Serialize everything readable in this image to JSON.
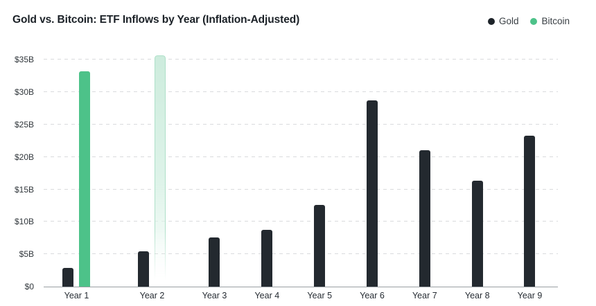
{
  "header": {
    "title": "Gold vs. Bitcoin: ETF Inflows by Year (Inflation-Adjusted)"
  },
  "legend": {
    "items": [
      {
        "label": "Gold",
        "color": "#1d2329"
      },
      {
        "label": "Bitcoin",
        "color": "#4dc289"
      }
    ]
  },
  "chart_data": {
    "type": "bar",
    "title": "Gold vs. Bitcoin: ETF Inflows by Year (Inflation-Adjusted)",
    "categories": [
      "Year 1",
      "Year 2",
      "Year 3",
      "Year 4",
      "Year 5",
      "Year 6",
      "Year 7",
      "Year 8",
      "Year 9"
    ],
    "series": [
      {
        "name": "Gold",
        "color": "#23292f",
        "values": [
          2.9,
          5.4,
          7.6,
          8.8,
          12.6,
          28.7,
          21.0,
          16.3,
          23.3
        ]
      },
      {
        "name": "Bitcoin",
        "color": "#4dc289",
        "values": [
          33.2,
          35.7,
          null,
          null,
          null,
          null,
          null,
          null,
          null
        ],
        "faded": [
          false,
          true,
          false,
          false,
          false,
          false,
          false,
          false,
          false
        ]
      }
    ],
    "y_ticks": [
      {
        "label": "$35B",
        "value": 35
      },
      {
        "label": "$30B",
        "value": 30
      },
      {
        "label": "$25B",
        "value": 25
      },
      {
        "label": "$20B",
        "value": 20
      },
      {
        "label": "$15B",
        "value": 15
      },
      {
        "label": "$10B",
        "value": 10
      },
      {
        "label": "$5B",
        "value": 5
      },
      {
        "label": "$0",
        "value": 0
      }
    ],
    "xlabel": "",
    "ylabel": "",
    "ylim": [
      0,
      36.1
    ],
    "grid": "horizontal-dashed",
    "legend_position": "top-right"
  }
}
